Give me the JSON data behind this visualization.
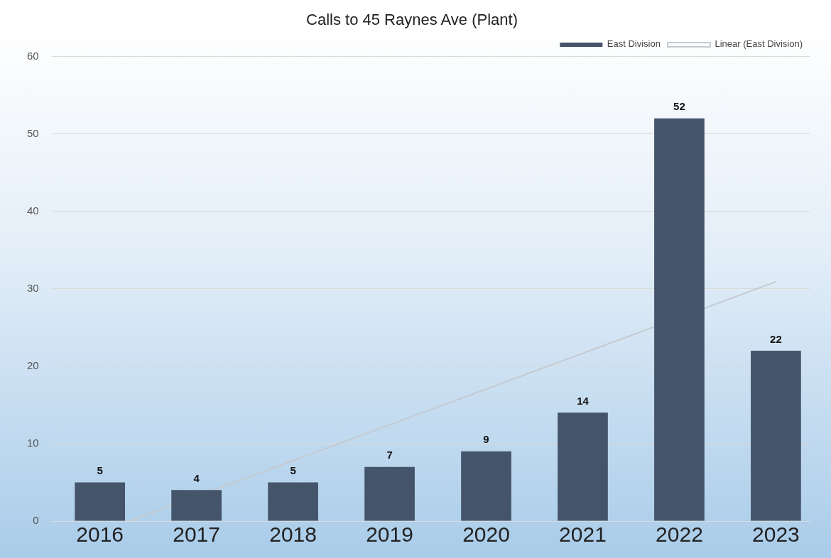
{
  "chart_data": {
    "type": "bar",
    "title": "Calls to 45 Raynes Ave (Plant)",
    "x": [
      2016,
      2017,
      2018,
      2019,
      2020,
      2021,
      2022,
      2023
    ],
    "xlim": [
      2015.5,
      2023.35
    ],
    "xticks": [
      2016,
      2017,
      2018,
      2019,
      2020,
      2021,
      2022,
      2023
    ],
    "ylim": [
      0,
      60
    ],
    "yticks": [
      0,
      10,
      20,
      30,
      40,
      50,
      60
    ],
    "series": [
      {
        "name": "East Division",
        "color": "#44546a",
        "values": [
          5,
          4,
          5,
          7,
          9,
          14,
          52,
          22
        ],
        "value_labels": [
          "5",
          "4",
          "5",
          "7",
          "9",
          "14",
          "52",
          "22"
        ]
      },
      {
        "name": "Linear (East Division)",
        "type": "line",
        "color": "#c5cad0",
        "x": [
          2016.31,
          2023
        ],
        "values": [
          0,
          30.9
        ]
      }
    ],
    "grid": "y",
    "legend": "top right",
    "marker": "none"
  }
}
